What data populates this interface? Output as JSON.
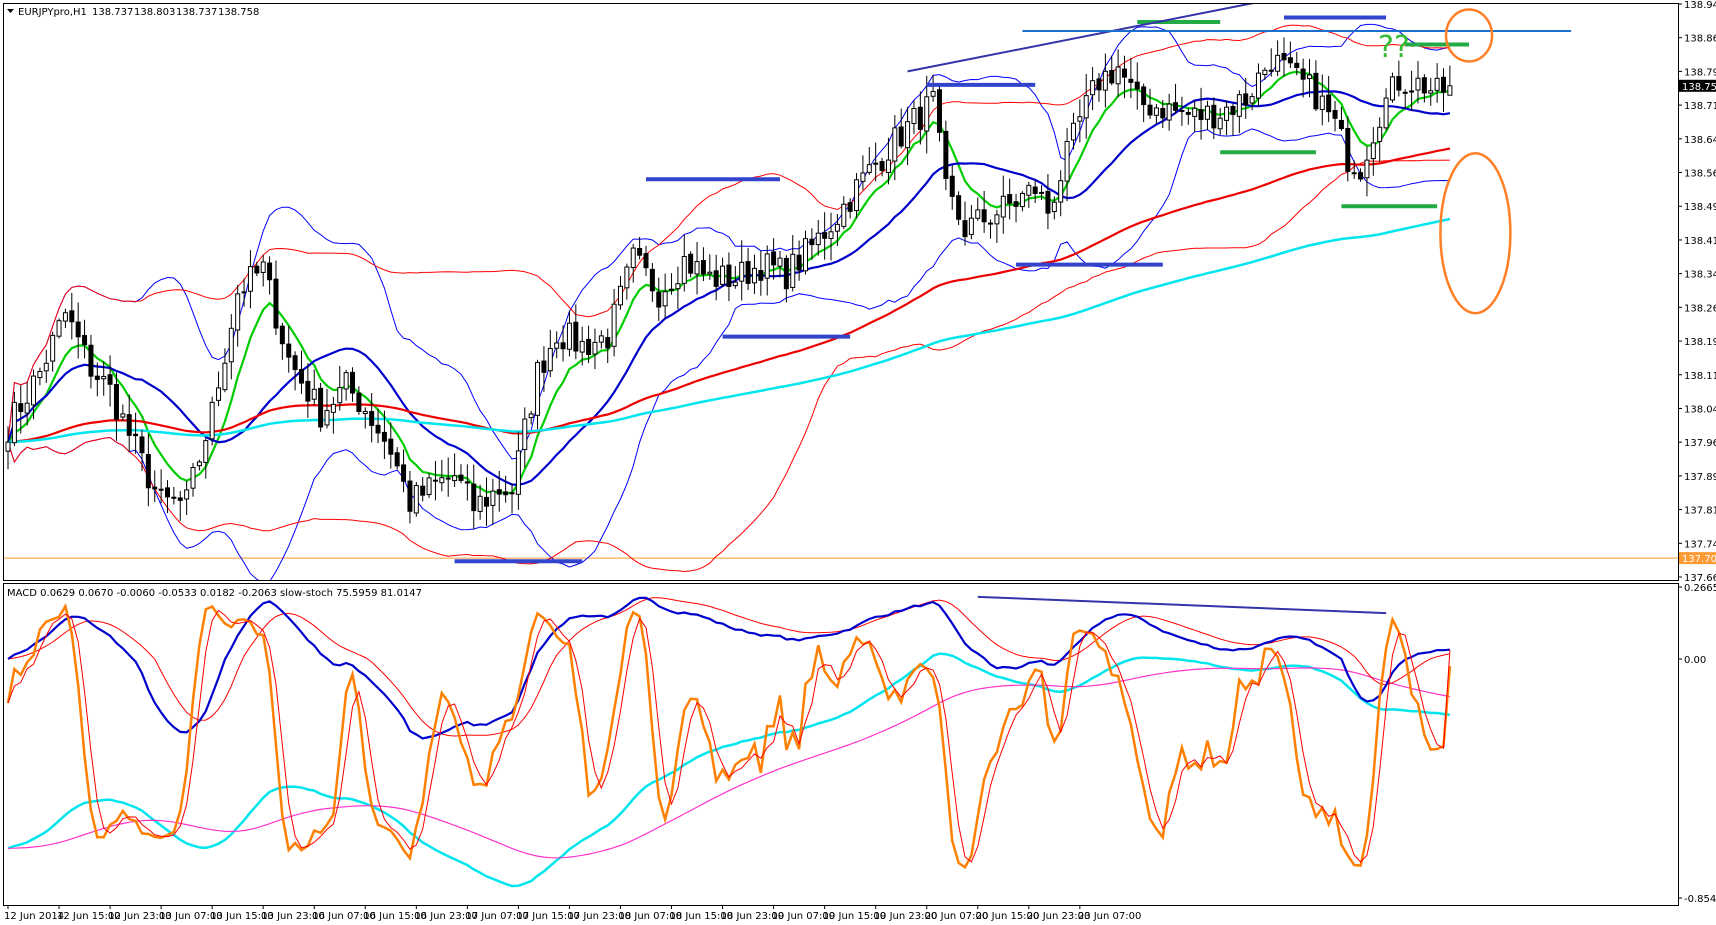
{
  "chart_data": [
    {
      "type": "candlestick",
      "symbol_header": "EURJPYpro,H1",
      "ohlc_header": [
        "138.737",
        "138.803",
        "138.737",
        "138.758"
      ],
      "ylim": [
        137.665,
        138.94
      ],
      "y_ticks": [
        "138.940",
        "138.865",
        "138.790",
        "138.715",
        "138.640",
        "138.565",
        "138.490",
        "138.415",
        "138.340",
        "138.265",
        "138.190",
        "138.115",
        "138.040",
        "137.965",
        "137.890",
        "137.815",
        "137.740",
        "137.665"
      ],
      "current_price_label": "138.758",
      "current_price": 138.758,
      "level_label": "137.707",
      "level": 137.707,
      "x_labels": [
        "12 Jun 2014",
        "12 Jun 15:00",
        "12 Jun 23:00",
        "13 Jun 07:00",
        "13 Jun 15:00",
        "13 Jun 23:00",
        "16 Jun 07:00",
        "16 Jun 15:00",
        "16 Jun 23:00",
        "17 Jun 07:00",
        "17 Jun 15:00",
        "17 Jun 23:00",
        "18 Jun 07:00",
        "18 Jun 15:00",
        "18 Jun 23:00",
        "19 Jun 07:00",
        "19 Jun 15:00",
        "19 Jun 23:00",
        "20 Jun 07:00",
        "20 Jun 15:00",
        "20 Jun 23:00",
        "23 Jun 07:00"
      ],
      "close_anchors": [
        [
          0,
          138.0
        ],
        [
          5,
          138.12
        ],
        [
          9,
          138.25
        ],
        [
          13,
          138.13
        ],
        [
          16,
          138.08
        ],
        [
          20,
          137.95
        ],
        [
          24,
          137.83
        ],
        [
          28,
          137.83
        ],
        [
          32,
          138.03
        ],
        [
          36,
          138.3
        ],
        [
          40,
          138.35
        ],
        [
          44,
          138.15
        ],
        [
          49,
          138.03
        ],
        [
          53,
          138.09
        ],
        [
          56,
          138.04
        ],
        [
          60,
          137.95
        ],
        [
          63,
          137.83
        ],
        [
          67,
          137.87
        ],
        [
          70,
          137.89
        ],
        [
          73,
          137.82
        ],
        [
          77,
          137.86
        ],
        [
          79,
          137.86
        ],
        [
          83,
          138.12
        ],
        [
          86,
          138.21
        ],
        [
          90,
          138.18
        ],
        [
          94,
          138.2
        ],
        [
          98,
          138.37
        ],
        [
          102,
          138.3
        ],
        [
          106,
          138.37
        ],
        [
          110,
          138.33
        ],
        [
          114,
          138.33
        ],
        [
          118,
          138.36
        ],
        [
          122,
          138.34
        ],
        [
          126,
          138.4
        ],
        [
          130,
          138.47
        ],
        [
          134,
          138.55
        ],
        [
          138,
          138.62
        ],
        [
          142,
          138.68
        ],
        [
          145,
          138.72
        ],
        [
          147,
          138.52
        ],
        [
          150,
          138.44
        ],
        [
          154,
          138.47
        ],
        [
          158,
          138.5
        ],
        [
          161,
          138.53
        ],
        [
          163,
          138.48
        ],
        [
          165,
          138.56
        ],
        [
          168,
          138.68
        ],
        [
          171,
          138.77
        ],
        [
          174,
          138.8
        ],
        [
          177,
          138.72
        ],
        [
          181,
          138.71
        ],
        [
          186,
          138.69
        ],
        [
          190,
          138.7
        ],
        [
          194,
          138.73
        ],
        [
          198,
          138.82
        ],
        [
          201,
          138.78
        ],
        [
          205,
          138.74
        ],
        [
          208,
          138.67
        ],
        [
          210,
          138.6
        ],
        [
          212,
          138.58
        ],
        [
          215,
          138.7
        ],
        [
          218,
          138.77
        ],
        [
          222,
          138.76
        ],
        [
          224,
          138.74
        ],
        [
          226,
          138.758
        ]
      ],
      "indicators": [
        {
          "name": "",
          "kind": "ema",
          "period": 8,
          "color": "#00cc00"
        },
        {
          "name": "",
          "kind": "sma",
          "period": 21,
          "color": "#0000cc"
        },
        {
          "name": "",
          "kind": "ema",
          "period": 100,
          "color": "#ee0000"
        },
        {
          "name": "",
          "kind": "bollinger",
          "period": 20,
          "deviation": 2,
          "color": "#0000ff"
        },
        {
          "name": "",
          "kind": "bollinger",
          "period": 48,
          "deviation": 2,
          "color": "#ff0000"
        },
        {
          "name": "",
          "kind": "ema",
          "period": 200,
          "color": "#00e5ee"
        }
      ],
      "annotations": {
        "question_marks": "??",
        "blue_resistance_supports": [
          {
            "from": [
              70,
              137.7
            ],
            "to": [
              90,
              137.7
            ]
          },
          {
            "from": [
              100,
              138.55
            ],
            "to": [
              121,
              138.55
            ]
          },
          {
            "from": [
              112,
              138.2
            ],
            "to": [
              132,
              138.2
            ]
          },
          {
            "from": [
              144,
              138.76
            ],
            "to": [
              161,
              138.76
            ]
          },
          {
            "from": [
              158,
              138.36
            ],
            "to": [
              181,
              138.36
            ]
          },
          {
            "from": [
              200,
              138.91
            ],
            "to": [
              216,
              138.91
            ]
          }
        ],
        "green_levels": [
          {
            "from": [
              177,
              138.9
            ],
            "to": [
              190,
              138.9
            ]
          },
          {
            "from": [
              190,
              138.61
            ],
            "to": [
              205,
              138.61
            ]
          },
          {
            "from": [
              209,
              138.49
            ],
            "to": [
              224,
              138.49
            ]
          },
          {
            "from": [
              219,
              138.85
            ],
            "to": [
              229,
              138.85
            ]
          }
        ],
        "trend_lines": [
          {
            "from": [
              141,
              138.79
            ],
            "to": [
              198,
              138.95
            ],
            "color": "#3333aa"
          },
          {
            "from": [
              159,
              138.88
            ],
            "to": [
              245,
              138.88
            ],
            "color": "#1a6fd1"
          }
        ],
        "ellipses": [
          "upper",
          "lower"
        ]
      }
    },
    {
      "type": "oscillator",
      "header": "MACD 0.0629 0.0670 -0.0060 -0.0533 0.0182 -0.2063  slow-stoch 75.5959 81.0147",
      "ylim": [
        -0.8548,
        0.2665
      ],
      "y_ticks": [
        "0.2665",
        "0.00",
        "-0.8548"
      ],
      "macd": {
        "fast": 12,
        "slow": 26,
        "signal": 9,
        "main_color": "#0000cc",
        "signal_color": "#ff0000",
        "long_color": "#00e5ee",
        "long_signal_color": "#ff33cc"
      },
      "stochastic": {
        "k": 5,
        "d": 3,
        "slowing": 3,
        "main_color": "#ff8000",
        "signal_color": "#ff0000",
        "last_k": 75.5959,
        "last_d": 81.0147
      },
      "annotations": {
        "divergence_line": {
          "from": [
            152,
            0.23
          ],
          "to": [
            216,
            0.17
          ],
          "color": "#3333aa"
        }
      }
    }
  ]
}
